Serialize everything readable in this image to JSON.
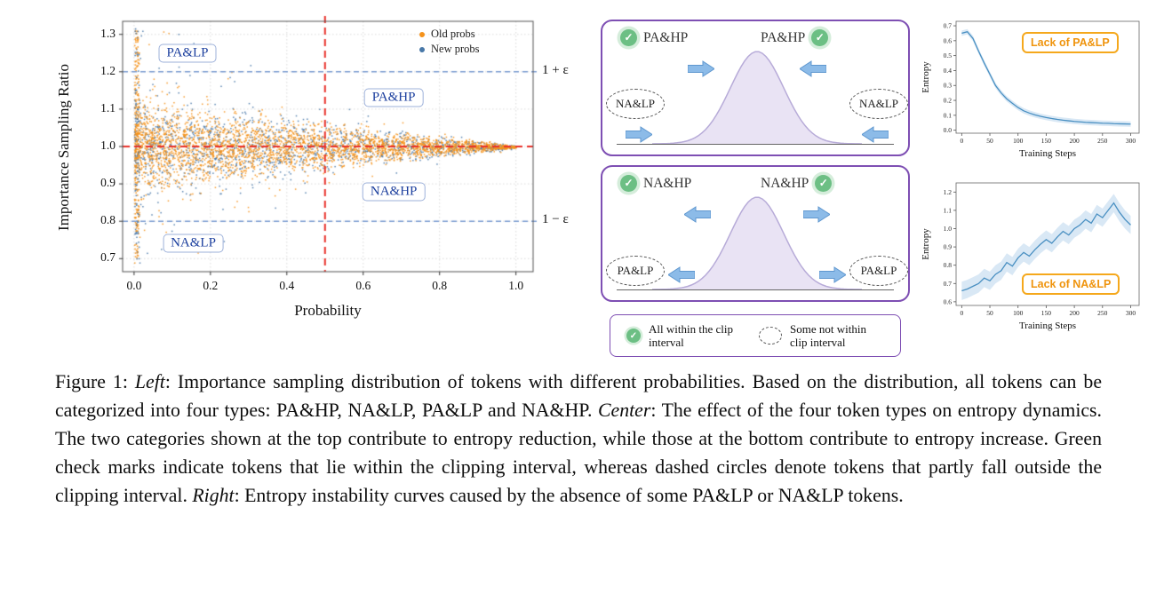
{
  "icons": {
    "check": "✓"
  },
  "colors": {
    "diagram_border": "#7e4fb3",
    "check_green": "#6cbf84",
    "arrow_fill": "#8cbbe8",
    "arrow_stroke": "#5f97cf",
    "curve_fill": "#e9e3f4",
    "curve_stroke": "#b7abd8",
    "annotation_border": "#f5a81c",
    "annotation_text": "#ef940d",
    "red_dashed": "#e8312a",
    "clip_blue": "#7b9cd1",
    "old_probs": "#f5921b",
    "new_probs": "#4878a8",
    "entropy_line": "#4a90c2",
    "entropy_band": "#b9d6ec",
    "region_text": "#1c3f9e",
    "region_border": "#9db1da"
  },
  "chart_data": [
    {
      "id": "importance-sampling-scatter",
      "type": "scatter",
      "xlabel": "Probability",
      "ylabel": "Importance Sampling Ratio",
      "xlim": [
        -0.03,
        1.045
      ],
      "ylim": [
        0.665,
        1.335
      ],
      "xticks": [
        0.0,
        0.2,
        0.4,
        0.6,
        0.8,
        1.0
      ],
      "yticks": [
        0.7,
        0.8,
        0.9,
        1.0,
        1.1,
        1.2,
        1.3
      ],
      "grid": true,
      "legend": {
        "position": "upper right",
        "items": [
          {
            "label": "Old probs",
            "color": "#f5921b"
          },
          {
            "label": "New probs",
            "color": "#4878a8"
          }
        ]
      },
      "reference_lines": {
        "red_dashed_horizontal": 1.0,
        "red_dashed_vertical": 0.5,
        "blue_dashed_horizontal": [
          1.2,
          0.8
        ]
      },
      "clip_bound_labels": [
        {
          "text": "1 + ε",
          "y": 1.2
        },
        {
          "text": "1 − ε",
          "y": 0.8
        }
      ],
      "region_labels": [
        {
          "text": "PA&LP",
          "x": 0.14,
          "y": 1.25
        },
        {
          "text": "PA&HP",
          "x": 0.68,
          "y": 1.13
        },
        {
          "text": "NA&HP",
          "x": 0.68,
          "y": 0.878
        },
        {
          "text": "NA&LP",
          "x": 0.155,
          "y": 0.742
        }
      ],
      "distribution": {
        "description": "Funnel-shaped point cloud centered at ratio 1.0; spread about ±0.15 at probability 0 narrowing to ~0 at probability 1; dense vertical spike of outliers at probability ≈ 0 spanning ratio 0.70–1.32",
        "center": 1.0,
        "spread_at_p0": 0.155,
        "spread_at_p1": 0.005,
        "series": [
          {
            "name": "Old probs",
            "color": "#f5921b",
            "n_points": 3200,
            "spread_scale": 1.0
          },
          {
            "name": "New probs",
            "color": "#4878a8",
            "n_points": 1500,
            "spread_scale": 1.12
          }
        ],
        "spike": {
          "x_max": 0.012,
          "y_range": [
            0.698,
            1.325
          ],
          "n_points": 260
        }
      }
    },
    {
      "id": "entropy-lack-pa-lp",
      "type": "line",
      "annotation": "Lack of PA&LP",
      "xlabel": "Training Steps",
      "ylabel": "Entropy",
      "xlim": [
        -10,
        315
      ],
      "ylim": [
        -0.02,
        0.73
      ],
      "xticks": [
        0,
        50,
        100,
        150,
        200,
        250,
        300
      ],
      "yticks": [
        0.0,
        0.1,
        0.2,
        0.3,
        0.4,
        0.5,
        0.6,
        0.7
      ],
      "line_color": "#4a90c2",
      "band_color": "#b9d6ec",
      "band_halfwidth": 0.018,
      "x": [
        0,
        10,
        20,
        30,
        40,
        50,
        60,
        70,
        80,
        90,
        100,
        110,
        120,
        130,
        140,
        150,
        160,
        170,
        180,
        190,
        200,
        210,
        220,
        230,
        240,
        250,
        260,
        270,
        280,
        290,
        300
      ],
      "y": [
        0.65,
        0.66,
        0.615,
        0.53,
        0.45,
        0.375,
        0.3,
        0.25,
        0.21,
        0.18,
        0.152,
        0.13,
        0.115,
        0.103,
        0.093,
        0.085,
        0.078,
        0.072,
        0.067,
        0.063,
        0.059,
        0.056,
        0.053,
        0.051,
        0.049,
        0.047,
        0.046,
        0.044,
        0.043,
        0.042,
        0.041
      ]
    },
    {
      "id": "entropy-lack-na-lp",
      "type": "line",
      "annotation": "Lack of NA&LP",
      "xlabel": "Training Steps",
      "ylabel": "Entropy",
      "xlim": [
        -10,
        315
      ],
      "ylim": [
        0.58,
        1.25
      ],
      "xticks": [
        0,
        50,
        100,
        150,
        200,
        250,
        300
      ],
      "yticks": [
        0.6,
        0.7,
        0.8,
        0.9,
        1.0,
        1.1,
        1.2
      ],
      "line_color": "#4a90c2",
      "band_color": "#b9d6ec",
      "band_halfwidth": 0.05,
      "x": [
        0,
        10,
        20,
        30,
        40,
        50,
        60,
        70,
        80,
        90,
        100,
        110,
        120,
        130,
        140,
        150,
        160,
        170,
        180,
        190,
        200,
        210,
        220,
        230,
        240,
        250,
        260,
        270,
        280,
        290,
        300
      ],
      "y": [
        0.66,
        0.67,
        0.685,
        0.7,
        0.73,
        0.715,
        0.75,
        0.77,
        0.815,
        0.795,
        0.84,
        0.87,
        0.85,
        0.885,
        0.915,
        0.94,
        0.92,
        0.955,
        0.985,
        0.965,
        1.0,
        1.02,
        1.05,
        1.03,
        1.08,
        1.06,
        1.1,
        1.14,
        1.09,
        1.05,
        1.02
      ]
    }
  ],
  "diagram": {
    "top_panel": {
      "left_check_label": "PA&HP",
      "right_check_label": "PA&HP",
      "left_dashed_label": "NA&LP",
      "right_dashed_label": "NA&LP",
      "arrow_direction": "inward"
    },
    "bottom_panel": {
      "left_check_label": "NA&HP",
      "right_check_label": "NA&HP",
      "left_dashed_label": "PA&LP",
      "right_dashed_label": "PA&LP",
      "arrow_direction": "outward"
    },
    "legend": {
      "check_label": "All within the clip interval",
      "dashed_label": "Some not within clip interval"
    }
  },
  "caption": {
    "segments": [
      {
        "text": "Figure 1: ",
        "style": "normal"
      },
      {
        "text": "Left",
        "style": "italic"
      },
      {
        "text": ": Importance sampling distribution of tokens with different probabilities. Based on the distribution, all tokens can be categorized into four types: PA&HP, NA&LP, PA&LP and NA&HP. ",
        "style": "normal"
      },
      {
        "text": "Center",
        "style": "italic"
      },
      {
        "text": ": The effect of the four token types on entropy dynamics. The two categories shown at the top contribute to entropy reduction, while those at the bottom contribute to entropy increase. Green check marks indicate tokens that lie within the clipping interval, whereas dashed circles denote tokens that partly fall outside the clipping interval. ",
        "style": "normal"
      },
      {
        "text": "Right",
        "style": "italic"
      },
      {
        "text": ": Entropy instability curves caused by the absence of some PA&LP or NA&LP tokens.",
        "style": "normal"
      }
    ]
  }
}
